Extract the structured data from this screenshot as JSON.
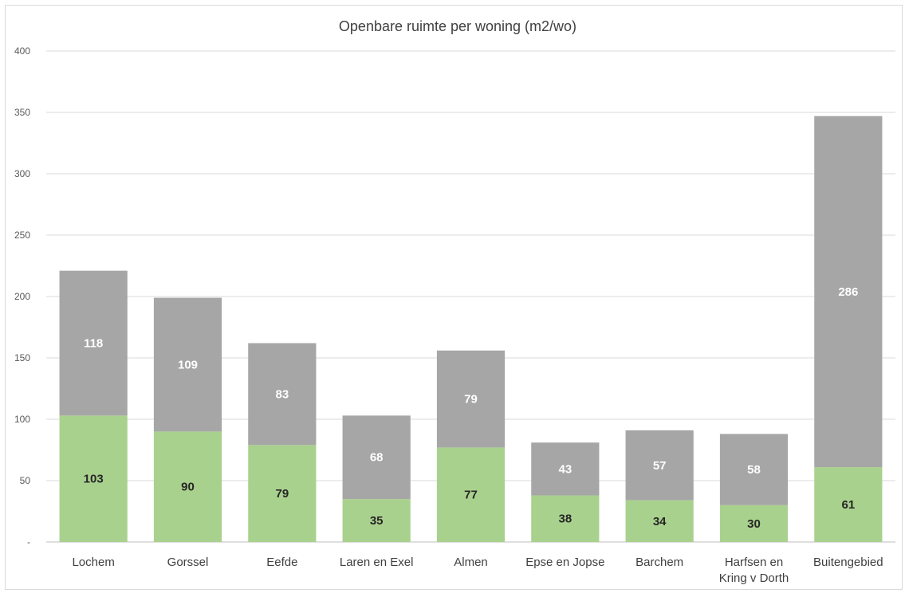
{
  "chart_data": {
    "type": "bar",
    "stacked": true,
    "title": "Openbare ruimte per woning (m2/wo)",
    "xlabel": "",
    "ylabel": "",
    "ylim": [
      0,
      400
    ],
    "yticks": [
      0,
      50,
      100,
      150,
      200,
      250,
      300,
      350,
      400
    ],
    "ytick_labels": [
      "-",
      "50",
      "100",
      "150",
      "200",
      "250",
      "300",
      "350",
      "400"
    ],
    "grid": true,
    "legend": "none",
    "categories": [
      [
        "Lochem"
      ],
      [
        "Gorssel"
      ],
      [
        "Eefde"
      ],
      [
        "Laren en Exel"
      ],
      [
        "Almen"
      ],
      [
        "Epse en Jopse"
      ],
      [
        "Barchem"
      ],
      [
        "Harfsen en",
        "Kring v Dorth"
      ],
      [
        "Buitengebied"
      ]
    ],
    "series": [
      {
        "color": "#a9d18e",
        "label_color": "#262626",
        "values": [
          103,
          90,
          79,
          35,
          77,
          38,
          34,
          30,
          61
        ]
      },
      {
        "color": "#a6a6a6",
        "label_color": "#ffffff",
        "values": [
          118,
          109,
          83,
          68,
          79,
          43,
          57,
          58,
          286
        ]
      }
    ],
    "gridline_color": "#d9d9d9",
    "axis_color": "#bfbfbf"
  }
}
